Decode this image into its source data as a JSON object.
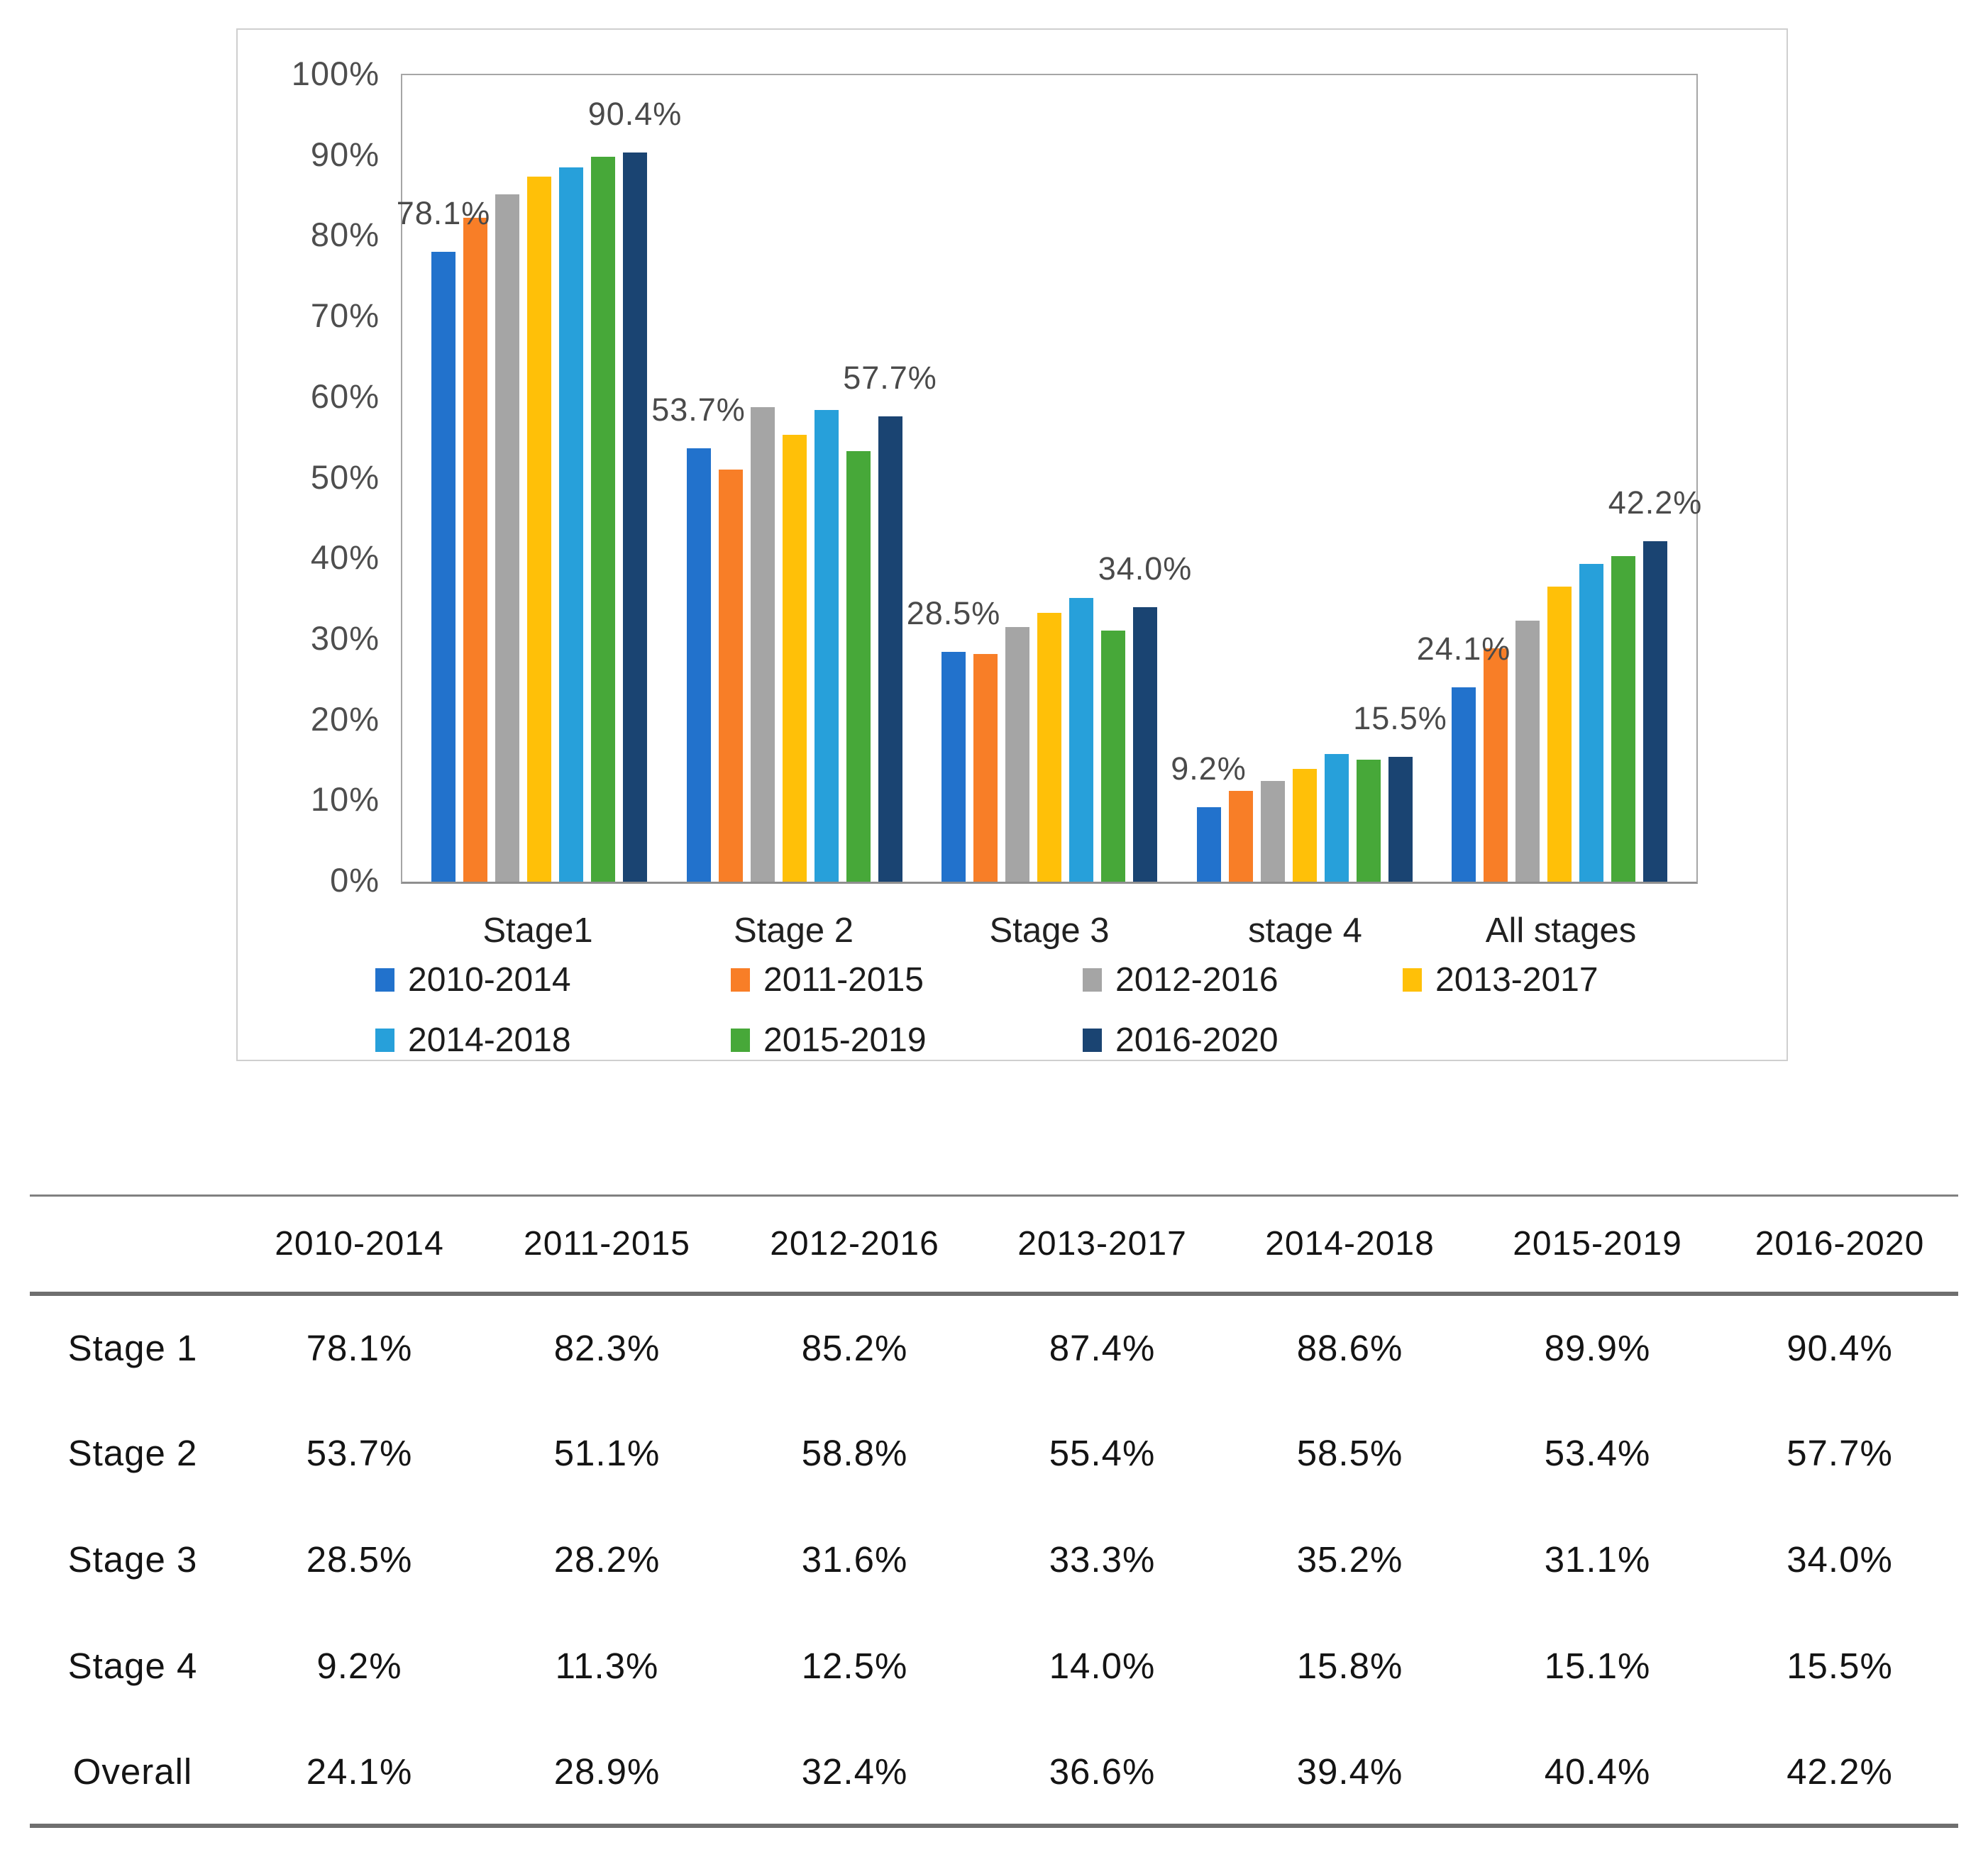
{
  "chart_data": {
    "type": "bar",
    "title": "",
    "xlabel": "",
    "ylabel": "",
    "ylim": [
      0,
      100
    ],
    "grid": false,
    "legend_position": "bottom",
    "y_ticks": [
      "100%",
      "90%",
      "80%",
      "70%",
      "60%",
      "50%",
      "40%",
      "30%",
      "20%",
      "10%",
      "0%"
    ],
    "categories": [
      "Stage1",
      "Stage 2",
      "Stage 3",
      "stage 4",
      "All stages"
    ],
    "series": [
      {
        "name": "2010-2014",
        "color": "#2272CC",
        "values": [
          78.1,
          53.7,
          28.5,
          9.2,
          24.1
        ]
      },
      {
        "name": "2011-2015",
        "color": "#F87E27",
        "values": [
          82.3,
          51.1,
          28.2,
          11.3,
          28.9
        ]
      },
      {
        "name": "2012-2016",
        "color": "#A5A5A5",
        "values": [
          85.2,
          58.8,
          31.6,
          12.5,
          32.4
        ]
      },
      {
        "name": "2013-2017",
        "color": "#FFC008",
        "values": [
          87.4,
          55.4,
          33.3,
          14.0,
          36.6
        ]
      },
      {
        "name": "2014-2018",
        "color": "#27A0DA",
        "values": [
          88.6,
          58.5,
          35.2,
          15.8,
          39.4
        ]
      },
      {
        "name": "2015-2019",
        "color": "#47A839",
        "values": [
          89.9,
          53.4,
          31.1,
          15.1,
          40.4
        ]
      },
      {
        "name": "2016-2020",
        "color": "#1A4472",
        "values": [
          90.4,
          57.7,
          34.0,
          15.5,
          42.2
        ]
      }
    ],
    "data_labels": [
      {
        "category_index": 0,
        "series_index": 0,
        "text": "78.1%"
      },
      {
        "category_index": 0,
        "series_index": 6,
        "text": "90.4%"
      },
      {
        "category_index": 1,
        "series_index": 0,
        "text": "53.7%"
      },
      {
        "category_index": 1,
        "series_index": 6,
        "text": "57.7%"
      },
      {
        "category_index": 2,
        "series_index": 0,
        "text": "28.5%"
      },
      {
        "category_index": 2,
        "series_index": 6,
        "text": "34.0%"
      },
      {
        "category_index": 3,
        "series_index": 0,
        "text": "9.2%"
      },
      {
        "category_index": 3,
        "series_index": 6,
        "text": "15.5%"
      },
      {
        "category_index": 4,
        "series_index": 0,
        "text": "24.1%"
      },
      {
        "category_index": 4,
        "series_index": 6,
        "text": "42.2%"
      }
    ]
  },
  "table": {
    "column_headers": [
      "2010-2014",
      "2011-2015",
      "2012-2016",
      "2013-2017",
      "2014-2018",
      "2015-2019",
      "2016-2020"
    ],
    "rows": [
      {
        "label": "Stage 1",
        "values": [
          "78.1%",
          "82.3%",
          "85.2%",
          "87.4%",
          "88.6%",
          "89.9%",
          "90.4%"
        ]
      },
      {
        "label": "Stage 2",
        "values": [
          "53.7%",
          "51.1%",
          "58.8%",
          "55.4%",
          "58.5%",
          "53.4%",
          "57.7%"
        ]
      },
      {
        "label": "Stage 3",
        "values": [
          "28.5%",
          "28.2%",
          "31.6%",
          "33.3%",
          "35.2%",
          "31.1%",
          "34.0%"
        ]
      },
      {
        "label": "Stage 4",
        "values": [
          "9.2%",
          "11.3%",
          "12.5%",
          "14.0%",
          "15.8%",
          "15.1%",
          "15.5%"
        ]
      },
      {
        "label": "Overall",
        "values": [
          "24.1%",
          "28.9%",
          "32.4%",
          "36.6%",
          "39.4%",
          "40.4%",
          "42.2%"
        ]
      }
    ]
  }
}
